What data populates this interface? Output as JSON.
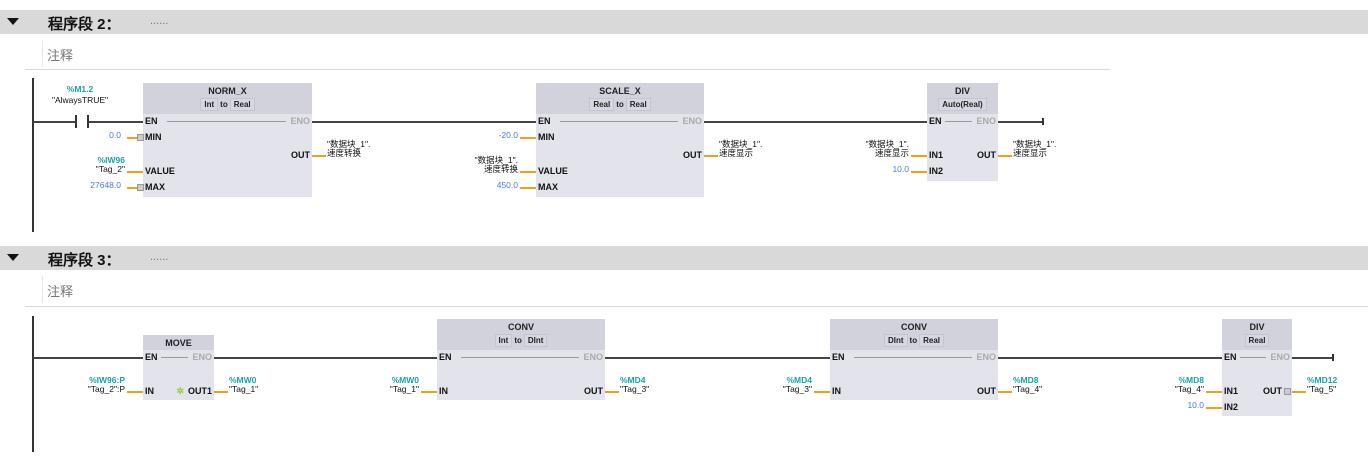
{
  "networks": [
    {
      "title": "程序段 2：",
      "dots": "......",
      "comment": "注释",
      "contact": {
        "address": "%M1.2",
        "symbol": "\"AlwaysTRUE\""
      },
      "blocks": [
        {
          "name": "NORM_X",
          "types": [
            "Int",
            "to",
            "Real"
          ],
          "en": "EN",
          "eno": "ENO",
          "inputs": [
            {
              "pin": "MIN",
              "lines": [
                "0.0"
              ],
              "kind": "const",
              "marker": true
            },
            {
              "pin": "VALUE",
              "lines": [
                "%IW96",
                "\"Tag_2\""
              ],
              "kind": "tag"
            },
            {
              "pin": "MAX",
              "lines": [
                "27648.0"
              ],
              "kind": "const",
              "marker": true
            }
          ],
          "outputs": [
            {
              "pin": "OUT",
              "lines": [
                "\"数据块_1\".",
                "速度转换"
              ],
              "kind": "symbol"
            }
          ]
        },
        {
          "name": "SCALE_X",
          "types": [
            "Real",
            "to",
            "Real"
          ],
          "en": "EN",
          "eno": "ENO",
          "inputs": [
            {
              "pin": "MIN",
              "lines": [
                "-20.0"
              ],
              "kind": "const"
            },
            {
              "pin": "VALUE",
              "lines": [
                "\"数据块_1\".",
                "速度转换"
              ],
              "kind": "symbol"
            },
            {
              "pin": "MAX",
              "lines": [
                "450.0"
              ],
              "kind": "const"
            }
          ],
          "outputs": [
            {
              "pin": "OUT",
              "lines": [
                "\"数据块_1\".",
                "速度显示"
              ],
              "kind": "symbol"
            }
          ]
        },
        {
          "name": "DIV",
          "types": [
            "Auto(Real)"
          ],
          "en": "EN",
          "eno": "ENO",
          "inputs": [
            {
              "pin": "IN1",
              "lines": [
                "\"数据块_1\".",
                "速度显示"
              ],
              "kind": "symbol"
            },
            {
              "pin": "IN2",
              "lines": [
                "10.0"
              ],
              "kind": "const"
            }
          ],
          "outputs": [
            {
              "pin": "OUT",
              "lines": [
                "\"数据块_1\".",
                "速度显示"
              ],
              "kind": "symbol"
            }
          ]
        }
      ]
    },
    {
      "title": "程序段 3：",
      "dots": "......",
      "comment": "注释",
      "blocks": [
        {
          "name": "MOVE",
          "types": [],
          "en": "EN",
          "eno": "ENO",
          "inputs": [
            {
              "pin": "IN",
              "lines": [
                "%IW96:P",
                "\"Tag_2\":P"
              ],
              "kind": "tag"
            }
          ],
          "outputs": [
            {
              "pin": "OUT1",
              "lines": [
                "%MW0",
                "\"Tag_1\""
              ],
              "kind": "tag",
              "star": "✲"
            }
          ]
        },
        {
          "name": "CONV",
          "types": [
            "Int",
            "to",
            "DInt"
          ],
          "en": "EN",
          "eno": "ENO",
          "inputs": [
            {
              "pin": "IN",
              "lines": [
                "%MW0",
                "\"Tag_1\""
              ],
              "kind": "tag"
            }
          ],
          "outputs": [
            {
              "pin": "OUT",
              "lines": [
                "%MD4",
                "\"Tag_3\""
              ],
              "kind": "tag"
            }
          ]
        },
        {
          "name": "CONV",
          "types": [
            "DInt",
            "to",
            "Real"
          ],
          "en": "EN",
          "eno": "ENO",
          "inputs": [
            {
              "pin": "IN",
              "lines": [
                "%MD4",
                "\"Tag_3\""
              ],
              "kind": "tag"
            }
          ],
          "outputs": [
            {
              "pin": "OUT",
              "lines": [
                "%MD8",
                "\"Tag_4\""
              ],
              "kind": "tag"
            }
          ]
        },
        {
          "name": "DIV",
          "types": [
            "Real"
          ],
          "en": "EN",
          "eno": "ENO",
          "inputs": [
            {
              "pin": "IN1",
              "lines": [
                "%MD8",
                "\"Tag_4\""
              ],
              "kind": "tag"
            },
            {
              "pin": "IN2",
              "lines": [
                "10.0"
              ],
              "kind": "const"
            }
          ],
          "outputs": [
            {
              "pin": "OUT",
              "lines": [
                "%MD12",
                "\"Tag_5\""
              ],
              "kind": "tag",
              "marker": true
            }
          ]
        }
      ]
    }
  ]
}
